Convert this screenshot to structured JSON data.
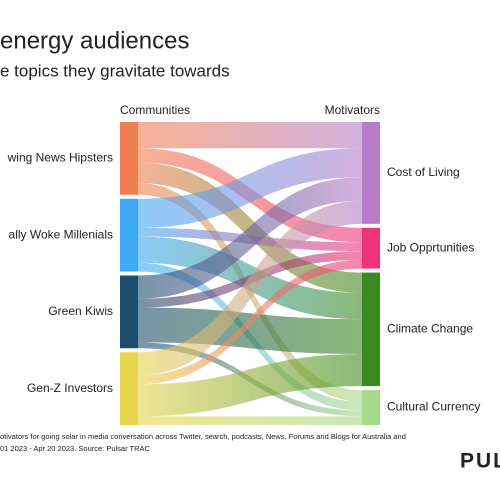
{
  "chart_data": {
    "type": "sankey",
    "title": "energy audiences",
    "subtitle": "e topics they gravitate towards",
    "source_header": "Communities",
    "target_header": "Motivators",
    "sources": [
      {
        "name": "wing News Hipsters",
        "color": "#f07f4f"
      },
      {
        "name": "ally Woke Millenials",
        "color": "#3fa9f5"
      },
      {
        "name": "Green Kiwis",
        "color": "#1d4b6c"
      },
      {
        "name": "Gen-Z Investors",
        "color": "#e8d44d"
      }
    ],
    "targets": [
      {
        "name": "Cost of Living",
        "color": "#b57cc7"
      },
      {
        "name": "Job Opprtunities",
        "color": "#f0327a"
      },
      {
        "name": "Climate Change",
        "color": "#3a8a1f"
      },
      {
        "name": "Cultural Currency",
        "color": "#a6d98a"
      }
    ],
    "flows": [
      [
        9,
        5,
        7,
        4
      ],
      [
        10,
        3,
        9,
        3
      ],
      [
        8,
        3,
        12,
        2
      ],
      [
        8,
        3,
        11,
        3
      ]
    ]
  },
  "footnote": [
    "otivators for going solar in media conversation across Twitter, search, podcasts, News, Forums and Blogs for Australia and",
    "01 2023 - Apr 20 2023. Source: Pulsar TRAC"
  ],
  "brand": "PUL"
}
